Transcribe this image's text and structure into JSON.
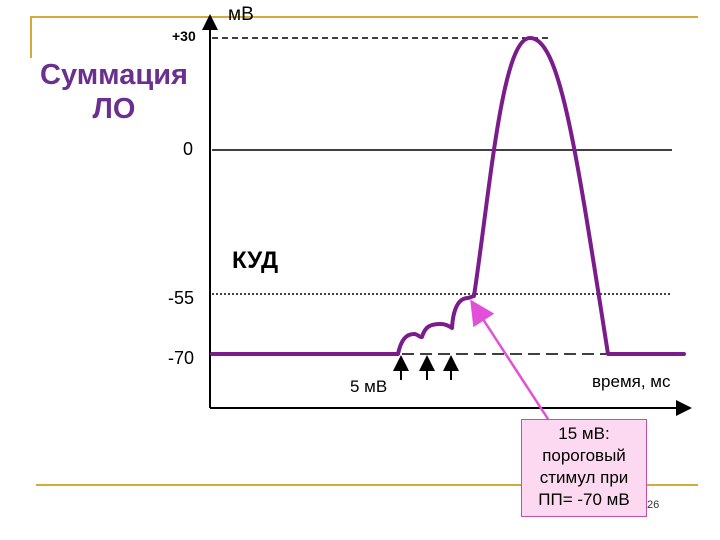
{
  "title": {
    "line1": "Суммация",
    "line2": "ЛО"
  },
  "axis": {
    "unit_label": "мВ",
    "tick_plus30": "+30",
    "tick_zero": "0",
    "tick_m55": "-55",
    "tick_m70": "-70",
    "x_label": "время, мс"
  },
  "threshold_label": "КУД",
  "stimulus_label": "5 мВ",
  "note": {
    "line1": "15 мВ:",
    "line2": "пороговый",
    "line3": "стимул при",
    "line4": "ПП= -70 мВ"
  },
  "page_number": "26",
  "colors": {
    "trace": "#7a1c8c",
    "callout_arrow": "#e24fd8",
    "callout_fill": "#fcd9f1",
    "title": "#6a2f8f",
    "frame": "#d4aa3b"
  }
}
